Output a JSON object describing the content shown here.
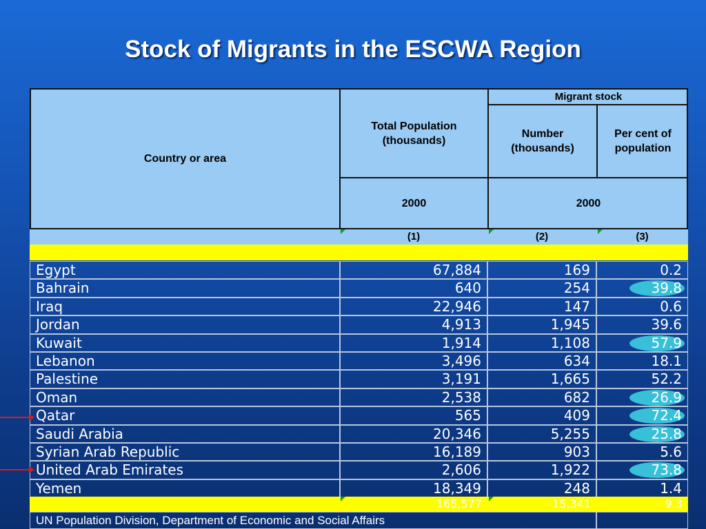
{
  "title": "Stock of Migrants in the ESCWA Region",
  "header": {
    "country": "Country or area",
    "total_population": "Total Population (thousands)",
    "migrant_stock": "Migrant stock",
    "number": "Number (thousands)",
    "percent": "Per cent of population",
    "year_total": "2000",
    "year_migrant": "2000"
  },
  "column_numbers": [
    "(1)",
    "(2)",
    "(3)"
  ],
  "rows": [
    {
      "country": "Egypt",
      "population": "67,884",
      "number": "169",
      "percent": "0.2",
      "highlight": false
    },
    {
      "country": "Bahrain",
      "population": "640",
      "number": "254",
      "percent": "39.8",
      "highlight": true
    },
    {
      "country": "Iraq",
      "population": "22,946",
      "number": "147",
      "percent": "0.6",
      "highlight": false
    },
    {
      "country": "Jordan",
      "population": "4,913",
      "number": "1,945",
      "percent": "39.6",
      "highlight": false
    },
    {
      "country": "Kuwait",
      "population": "1,914",
      "number": "1,108",
      "percent": "57.9",
      "highlight": true
    },
    {
      "country": "Lebanon",
      "population": "3,496",
      "number": "634",
      "percent": "18.1",
      "highlight": false
    },
    {
      "country": "Palestine",
      "population": "3,191",
      "number": "1,665",
      "percent": "52.2",
      "highlight": false
    },
    {
      "country": "Oman",
      "population": "2,538",
      "number": "682",
      "percent": "26.9",
      "highlight": true
    },
    {
      "country": "Qatar",
      "population": "565",
      "number": "409",
      "percent": "72.4",
      "highlight": true
    },
    {
      "country": "Saudi Arabia",
      "population": "20,346",
      "number": "5,255",
      "percent": "25.8",
      "highlight": true
    },
    {
      "country": "Syrian Arab Republic",
      "population": "16,189",
      "number": "903",
      "percent": "5.6",
      "highlight": false
    },
    {
      "country": "United Arab Emirates",
      "population": "2,606",
      "number": "1,922",
      "percent": "73.8",
      "highlight": true
    },
    {
      "country": "Yemen",
      "population": "18,349",
      "number": "248",
      "percent": "1.4",
      "highlight": false
    }
  ],
  "totals": {
    "population": "165,577",
    "number": "15,341",
    "percent": "9.3"
  },
  "source": "UN Population Division, Department of Economic and Social Affairs",
  "colors": {
    "header_bg": "#9acbf4",
    "highlight_bar": "#ffff00",
    "oval": "#38c0d8",
    "arrow": "#e01818"
  }
}
